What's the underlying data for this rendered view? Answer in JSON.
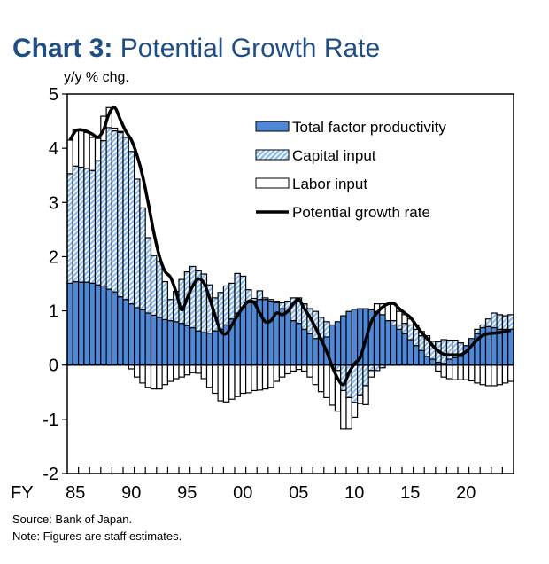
{
  "title": {
    "prefix": "Chart 3:",
    "text": "Potential Growth Rate"
  },
  "source": "Source: Bank of Japan.",
  "note": "Note: Figures are staff estimates.",
  "chart_data": {
    "type": "bar",
    "stacked": true,
    "ylabel": "y/y % chg.",
    "xlabel_prefix": "FY",
    "ylim": [
      -2,
      5
    ],
    "yticks": [
      "5",
      "4",
      "3",
      "2",
      "1",
      "0",
      "-1",
      "-2"
    ],
    "x_start": "FY1985 first half",
    "x_tick_labels": [
      "85",
      "90",
      "95",
      "00",
      "05",
      "10",
      "15",
      "20"
    ],
    "periods_per_year": 2,
    "grid": false,
    "legend_position": "top-right",
    "colors": {
      "tfp": "#4f88d6",
      "capital": "#8dbcec",
      "labor": "#ffffff",
      "line": "#000000"
    },
    "series": [
      {
        "name": "Total factor productivity",
        "kind": "bar",
        "values": [
          1.51,
          1.54,
          1.53,
          1.53,
          1.51,
          1.48,
          1.46,
          1.4,
          1.35,
          1.26,
          1.21,
          1.13,
          1.06,
          1.02,
          0.96,
          0.92,
          0.88,
          0.84,
          0.82,
          0.8,
          0.77,
          0.73,
          0.69,
          0.63,
          0.6,
          0.59,
          0.63,
          0.66,
          0.74,
          0.85,
          0.96,
          1.07,
          1.15,
          1.18,
          1.21,
          1.21,
          1.18,
          1.15,
          1.04,
          0.99,
          0.82,
          0.77,
          0.66,
          0.58,
          0.49,
          0.49,
          0.52,
          0.74,
          0.8,
          0.91,
          0.99,
          1.03,
          1.04,
          1.04,
          1.02,
          0.99,
          0.93,
          0.82,
          0.74,
          0.66,
          0.58,
          0.47,
          0.36,
          0.27,
          0.16,
          0.11,
          0.05,
          0.03,
          0.11,
          0.14,
          0.16,
          0.36,
          0.49,
          0.58,
          0.69,
          0.71,
          0.69,
          0.66,
          0.66,
          0.66
        ]
      },
      {
        "name": "Capital input",
        "kind": "bar",
        "values": [
          2.02,
          2.13,
          2.12,
          2.1,
          2.08,
          2.29,
          2.68,
          2.98,
          2.97,
          3.03,
          2.99,
          2.81,
          2.37,
          1.88,
          1.39,
          1.1,
          1.03,
          0.7,
          0.39,
          0.56,
          0.81,
          0.99,
          1.13,
          1.11,
          1.08,
          0.89,
          0.61,
          0.68,
          0.72,
          0.66,
          0.73,
          0.57,
          0.24,
          0.05,
          0.16,
          0.03,
          0.03,
          0.03,
          0.11,
          0.19,
          0.42,
          0.47,
          0.47,
          0.46,
          0.5,
          0.39,
          0.28,
          0.0,
          -0.1,
          -0.47,
          -0.6,
          -0.69,
          -0.55,
          -0.38,
          -0.1,
          -0.1,
          -0.05,
          0.0,
          0.08,
          0.08,
          0.19,
          0.27,
          0.3,
          0.27,
          0.33,
          0.33,
          0.38,
          0.44,
          0.35,
          0.32,
          0.25,
          0.0,
          0.0,
          0.08,
          0.05,
          0.14,
          0.27,
          0.27,
          0.25,
          0.27
        ]
      },
      {
        "name": "Labor input",
        "kind": "bar",
        "values": [
          0.62,
          0.67,
          0.67,
          0.66,
          0.61,
          0.41,
          0.45,
          0.37,
          0.05,
          0.02,
          0.0,
          -0.07,
          -0.22,
          -0.33,
          -0.41,
          -0.44,
          -0.44,
          -0.36,
          -0.3,
          -0.25,
          -0.22,
          -0.18,
          -0.14,
          -0.15,
          -0.25,
          -0.41,
          -0.52,
          -0.66,
          -0.68,
          -0.63,
          -0.58,
          -0.52,
          -0.51,
          -0.47,
          -0.46,
          -0.44,
          -0.41,
          -0.3,
          -0.22,
          -0.16,
          -0.11,
          -0.08,
          -0.11,
          -0.22,
          -0.36,
          -0.49,
          -0.6,
          -0.74,
          -0.75,
          -0.71,
          -0.58,
          -0.27,
          -0.16,
          -0.35,
          -0.12,
          0.14,
          0.2,
          0.31,
          0.3,
          0.25,
          0.16,
          0.11,
          0.08,
          0.08,
          0.05,
          0.0,
          -0.11,
          -0.22,
          -0.25,
          -0.27,
          -0.27,
          -0.27,
          -0.29,
          -0.33,
          -0.36,
          -0.38,
          -0.38,
          -0.36,
          -0.33,
          -0.3
        ]
      },
      {
        "name": "Potential growth rate",
        "kind": "line",
        "values": [
          4.15,
          4.32,
          4.34,
          4.31,
          4.26,
          4.2,
          4.34,
          4.64,
          4.75,
          4.53,
          4.31,
          4.15,
          3.87,
          3.49,
          2.99,
          2.45,
          2.01,
          1.73,
          1.62,
          1.35,
          1.02,
          1.24,
          1.46,
          1.59,
          1.51,
          1.24,
          0.91,
          0.63,
          0.58,
          0.74,
          0.91,
          1.07,
          1.18,
          1.15,
          0.96,
          0.8,
          0.82,
          0.96,
          0.93,
          0.99,
          1.13,
          1.21,
          1.04,
          0.88,
          0.69,
          0.47,
          0.25,
          -0.03,
          -0.25,
          -0.36,
          -0.14,
          0.03,
          0.14,
          0.47,
          0.8,
          0.96,
          1.07,
          1.13,
          1.14,
          1.04,
          0.96,
          0.88,
          0.74,
          0.6,
          0.49,
          0.36,
          0.26,
          0.2,
          0.19,
          0.19,
          0.19,
          0.25,
          0.36,
          0.47,
          0.55,
          0.58,
          0.59,
          0.6,
          0.62,
          0.64
        ]
      }
    ]
  }
}
